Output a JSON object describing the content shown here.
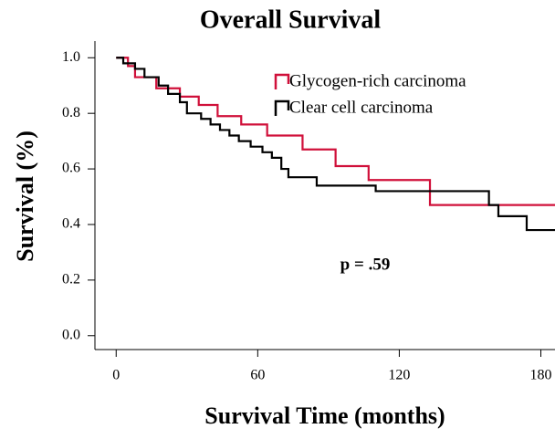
{
  "chart_data": {
    "type": "step",
    "title": "Overall Survival",
    "x_label": "Survival Time (months)",
    "y_label": "Survival (%)",
    "annotation": "p = .59",
    "xlim": [
      -9,
      186
    ],
    "ylim": [
      -0.05,
      1.06
    ],
    "xticks": [
      0,
      60,
      120,
      180
    ],
    "yticks": [
      {
        "value": 0,
        "label": "0.0"
      },
      0.2,
      0.4,
      0.6,
      0.8,
      {
        "value": 1,
        "label": "1.0"
      }
    ],
    "series": [
      {
        "name": "Glycogen-rich carcinoma",
        "color": "#d0103a",
        "x": [
          0,
          5,
          8,
          17,
          27,
          35,
          43,
          53,
          64,
          79,
          93,
          107,
          133,
          186
        ],
        "values": [
          1.0,
          0.97,
          0.93,
          0.89,
          0.86,
          0.83,
          0.79,
          0.76,
          0.72,
          0.67,
          0.61,
          0.56,
          0.47,
          0.47
        ]
      },
      {
        "name": "Clear cell carcinoma",
        "color": "#000000",
        "x": [
          0,
          3,
          8,
          12,
          18,
          22,
          27,
          30,
          36,
          40,
          44,
          48,
          52,
          57,
          62,
          66,
          70,
          73,
          85,
          110,
          158,
          162,
          174,
          186
        ],
        "values": [
          1.0,
          0.98,
          0.96,
          0.93,
          0.9,
          0.87,
          0.84,
          0.8,
          0.78,
          0.76,
          0.74,
          0.72,
          0.7,
          0.68,
          0.66,
          0.64,
          0.6,
          0.57,
          0.54,
          0.52,
          0.47,
          0.43,
          0.38,
          0.38
        ]
      }
    ]
  }
}
